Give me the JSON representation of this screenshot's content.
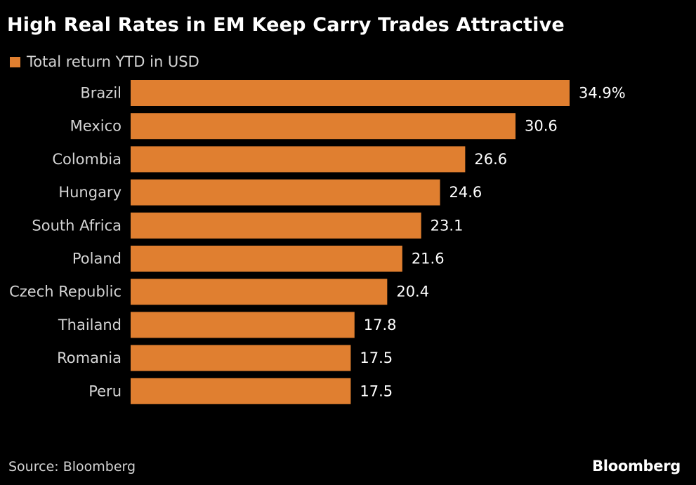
{
  "title": "High Real Rates in EM Keep Carry Trades Attractive",
  "source": "Source: Bloomberg",
  "brand": "Bloomberg",
  "colors": {
    "bar": "#e07f30",
    "background": "#000000",
    "text": "#ffffff",
    "muted": "#d4d4d4"
  },
  "chart_data": {
    "type": "bar",
    "orientation": "horizontal",
    "categories": [
      "Brazil",
      "Mexico",
      "Colombia",
      "Hungary",
      "South Africa",
      "Poland",
      "Czech Republic",
      "Thailand",
      "Romania",
      "Peru"
    ],
    "series": [
      {
        "name": "Total return YTD in USD",
        "values": [
          34.9,
          30.6,
          26.6,
          24.6,
          23.1,
          21.6,
          20.4,
          17.8,
          17.5,
          17.5
        ]
      }
    ],
    "value_labels": [
      "34.9%",
      "30.6",
      "26.6",
      "24.6",
      "23.1",
      "21.6",
      "20.4",
      "17.8",
      "17.5",
      "17.5"
    ],
    "xlim": [
      0,
      34.9
    ],
    "grid": false,
    "legend_position": "top-left"
  }
}
